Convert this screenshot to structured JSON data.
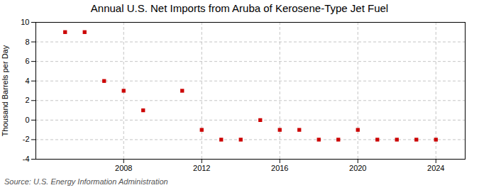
{
  "chart_data": {
    "type": "scatter",
    "title": "Annual U.S. Net Imports from Aruba of Kerosene-Type Jet Fuel",
    "ylabel": "Thousand Barrels per Day",
    "source": "Source: U.S. Energy Information Administration",
    "x": [
      2005,
      2006,
      2007,
      2008,
      2009,
      2011,
      2012,
      2013,
      2014,
      2015,
      2016,
      2017,
      2018,
      2019,
      2020,
      2021,
      2022,
      2023,
      2024
    ],
    "values": [
      9,
      9,
      4,
      3,
      1,
      3,
      -1,
      -2,
      -2,
      0,
      -1,
      -1,
      -2,
      -2,
      -1,
      -2,
      -2,
      -2,
      -2
    ],
    "color": "#cc0000",
    "marker": "square",
    "xlim": [
      2003.5,
      2025.5
    ],
    "xticks": [
      2008,
      2012,
      2016,
      2020,
      2024
    ],
    "ylim": [
      -4,
      10
    ],
    "yticks": [
      -4,
      -2,
      0,
      2,
      4,
      6,
      8,
      10
    ],
    "grid": true
  }
}
